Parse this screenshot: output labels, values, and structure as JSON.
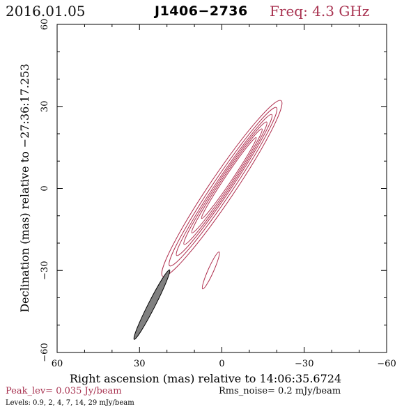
{
  "header": {
    "date": "2016.01.05",
    "source": "J1406−2736",
    "frequency": "Freq: 4.3 GHz"
  },
  "axes": {
    "xlabel": "Right ascension (mas) relative to 14:06:35.6724",
    "ylabel": "Declination (mas) relative to −27:36:17.253",
    "xlim": [
      60,
      -60
    ],
    "ylim": [
      -60,
      60
    ],
    "x_ticks": [
      "60",
      "30",
      "0",
      "−30",
      "−60"
    ],
    "y_ticks": [
      "−60",
      "−30",
      "0",
      "30",
      "60"
    ]
  },
  "footer": {
    "peak": "Peak_lev=  0.035 Jy/beam",
    "rms": "Rms_noise=   0.2 mJy/beam",
    "levels": "Levels: 0.9,    2,    4,    7,   14,   29 mJy/beam"
  },
  "colors": {
    "contour": "#b0304f",
    "beam": "#808080",
    "accent_text": "#a83250"
  },
  "contours": {
    "main_component": {
      "center_mas": [
        0,
        0
      ],
      "position_angle_deg": 34,
      "levels_mJy": [
        0.9,
        2,
        4,
        7,
        14,
        29
      ]
    },
    "secondary_component": {
      "center_mas": [
        4,
        -30
      ],
      "position_angle_deg": 24,
      "levels_mJy": [
        0.9
      ]
    }
  },
  "beam": {
    "center_mas": [
      25.5,
      -42.5
    ],
    "position_angle_deg": 27
  }
}
